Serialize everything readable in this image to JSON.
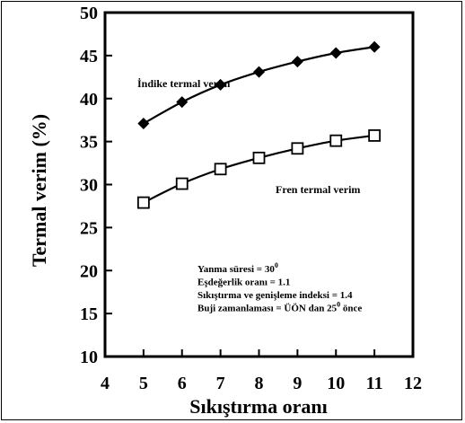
{
  "chart_data": {
    "type": "line",
    "xlabel": "Sıkıştırma oranı",
    "ylabel": "Termal verim (%)",
    "xlim": [
      4,
      12
    ],
    "ylim": [
      10,
      50
    ],
    "xticks": [
      "4",
      "5",
      "6",
      "7",
      "8",
      "9",
      "10",
      "11",
      "12"
    ],
    "yticks": [
      "10",
      "15",
      "20",
      "25",
      "30",
      "35",
      "40",
      "45",
      "50"
    ],
    "grid": false,
    "x": [
      5,
      6,
      7,
      8,
      9,
      10,
      11
    ],
    "series": [
      {
        "name": "İndike termal verim",
        "marker": "diamond-filled",
        "values": [
          37.1,
          39.6,
          41.6,
          43.1,
          44.3,
          45.3,
          46.0
        ]
      },
      {
        "name": "Fren termal verim",
        "marker": "square-open",
        "values": [
          27.9,
          30.1,
          31.8,
          33.1,
          34.2,
          35.1,
          35.7
        ]
      }
    ],
    "annotations": [
      {
        "parts": [
          "Yanma süresi = 30",
          "0",
          ""
        ]
      },
      {
        "parts": [
          "Eşdeğerlik oranı = 1.1",
          "",
          ""
        ]
      },
      {
        "parts": [
          "Sıkıştırma ve genişleme indeksi = 1.4",
          "",
          ""
        ]
      },
      {
        "parts": [
          "Buji zamanlaması = ÜÖN dan 25",
          "0",
          " önce"
        ]
      }
    ]
  }
}
